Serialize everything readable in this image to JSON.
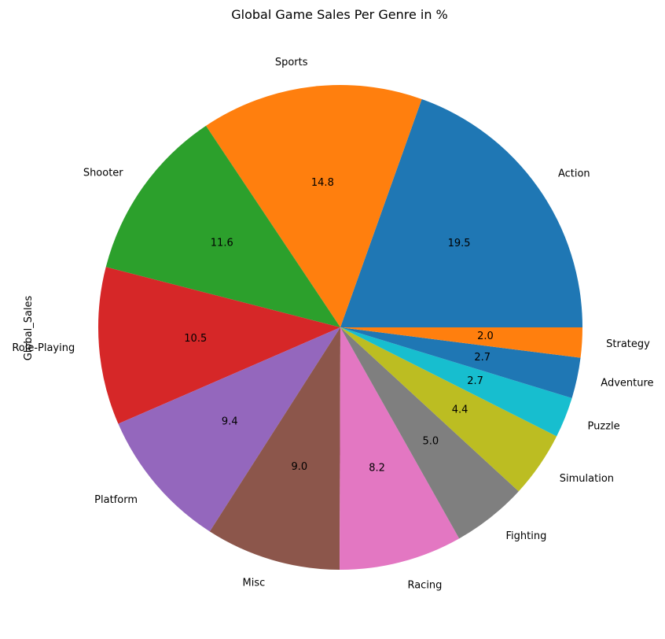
{
  "chart_data": {
    "type": "pie",
    "title": "Global Game Sales Per Genre in %",
    "ylabel": "Global_Sales",
    "xlabel": "",
    "start_angle_deg": 0,
    "direction": "counterclockwise",
    "categories": [
      "Action",
      "Sports",
      "Shooter",
      "Role-Playing",
      "Platform",
      "Misc",
      "Racing",
      "Fighting",
      "Simulation",
      "Puzzle",
      "Adventure",
      "Strategy"
    ],
    "values": [
      19.5,
      14.8,
      11.6,
      10.5,
      9.4,
      9.0,
      8.2,
      5.0,
      4.4,
      2.7,
      2.7,
      2.0
    ],
    "value_labels": [
      "19.5",
      "14.8",
      "11.6",
      "10.5",
      "9.4",
      "9.0",
      "8.2",
      "5.0",
      "4.4",
      "2.7",
      "2.7",
      "2.0"
    ],
    "colors": [
      "#1f77b4",
      "#ff7f0e",
      "#2ca02c",
      "#d62728",
      "#9467bd",
      "#8c564b",
      "#e377c2",
      "#7f7f7f",
      "#bcbd22",
      "#17becf",
      "#1f77b4",
      "#ff7f0e"
    ]
  }
}
